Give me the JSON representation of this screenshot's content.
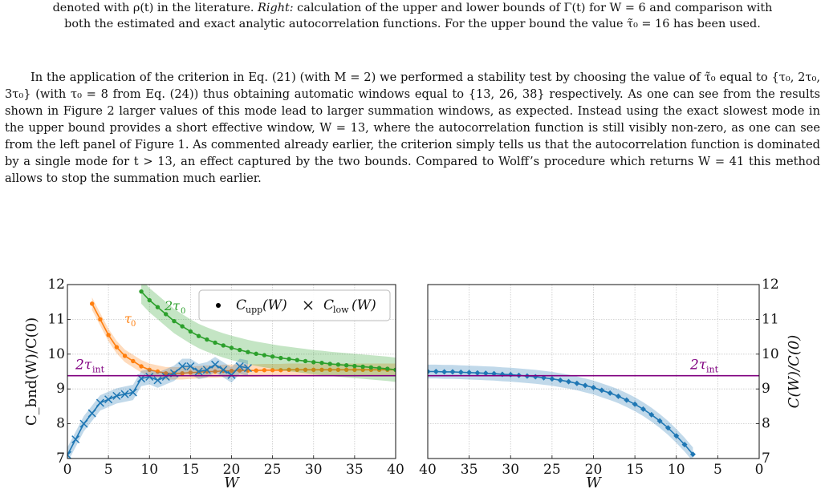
{
  "caption": {
    "line1": "denoted with ρ(t) in the literature. ",
    "right_label": "Right:",
    "line1_rest": " calculation of the upper and lower bounds of Γ(t) for W = 6 and comparison with",
    "line2": "both the estimated and exact analytic autocorrelation functions. For the upper bound the value τ̃₀ = 16 has been used."
  },
  "paragraph": "In the application of the criterion in Eq. (21) (with M = 2) we performed a stability test by choosing the value of τ̃₀ equal to {τ₀, 2τ₀, 3τ₀} (with τ₀ = 8 from Eq. (24)) thus obtaining automatic windows equal to {13, 26, 38} respectively. As one can see from the results shown in Figure 2 larger values of this mode lead to larger summation windows, as expected. Instead using the exact slowest mode in the upper bound provides a short effective window, W = 13, where the autocorrelation function is still visibly non-zero, as one can see from the left panel of Figure 1. As commented already earlier, the criterion simply tells us that the autocorrelation function is dominated by a single mode for t > 13, an effect captured by the two bounds. Compared to Wolff’s procedure which returns W = 41 this method allows to stop the summation much earlier.",
  "colors": {
    "blue": "#1f77b4",
    "orange": "#ff7f0e",
    "green": "#2ca02c",
    "purple": "#800080"
  },
  "chart_data": [
    {
      "type": "line",
      "panel": "left",
      "xlabel": "W",
      "ylabel": "C_bnd(W)/C(0)",
      "xlim": [
        0,
        40
      ],
      "ylim": [
        7,
        12
      ],
      "xticks": [
        "0",
        "5",
        "10",
        "15",
        "20",
        "25",
        "30",
        "35",
        "40"
      ],
      "yticks": [
        "7",
        "8",
        "9",
        "10",
        "11",
        "12"
      ],
      "grid": true,
      "legend": {
        "position": "top-right",
        "entries": [
          "C_upp(W)",
          "C_low(W)"
        ]
      },
      "hline": {
        "label": "2τ_int",
        "y": 9.38
      },
      "series": [
        {
          "name": "τ₀",
          "marker": "dot",
          "color_key": "orange",
          "x": [
            3,
            4,
            5,
            6,
            7,
            8,
            9,
            10,
            11,
            12,
            13,
            14,
            15,
            16,
            17,
            18,
            19,
            20,
            21,
            22,
            23,
            24,
            25,
            26,
            27,
            28,
            29,
            30,
            31,
            32,
            33,
            34,
            35,
            36,
            37,
            38,
            39,
            40
          ],
          "y": [
            11.45,
            11.0,
            10.55,
            10.2,
            9.95,
            9.8,
            9.65,
            9.55,
            9.5,
            9.45,
            9.45,
            9.45,
            9.47,
            9.48,
            9.5,
            9.5,
            9.52,
            9.52,
            9.53,
            9.53,
            9.53,
            9.54,
            9.54,
            9.54,
            9.55,
            9.55,
            9.55,
            9.55,
            9.55,
            9.55,
            9.55,
            9.55,
            9.55,
            9.55,
            9.55,
            9.55,
            9.55,
            9.55
          ],
          "err": 0.18
        },
        {
          "name": "2τ₀",
          "marker": "dot",
          "color_key": "green",
          "x": [
            9,
            10,
            11,
            12,
            13,
            14,
            15,
            16,
            17,
            18,
            19,
            20,
            21,
            22,
            23,
            24,
            25,
            26,
            27,
            28,
            29,
            30,
            31,
            32,
            33,
            34,
            35,
            36,
            37,
            38,
            39,
            40
          ],
          "y": [
            11.8,
            11.55,
            11.35,
            11.15,
            10.95,
            10.8,
            10.65,
            10.52,
            10.42,
            10.33,
            10.25,
            10.18,
            10.12,
            10.06,
            10.01,
            9.97,
            9.93,
            9.89,
            9.86,
            9.83,
            9.8,
            9.77,
            9.75,
            9.72,
            9.7,
            9.68,
            9.66,
            9.64,
            9.62,
            9.6,
            9.58,
            9.55
          ],
          "err": 0.35
        },
        {
          "name": "C_low(W)",
          "marker": "x",
          "color_key": "blue",
          "x": [
            0,
            1,
            2,
            3,
            4,
            5,
            6,
            7,
            8,
            9,
            10,
            11,
            12,
            13,
            14,
            15,
            16,
            17,
            18,
            19,
            20,
            21,
            22
          ],
          "y": [
            7.1,
            7.55,
            8.0,
            8.3,
            8.6,
            8.7,
            8.8,
            8.85,
            8.9,
            9.3,
            9.35,
            9.25,
            9.35,
            9.45,
            9.65,
            9.65,
            9.5,
            9.55,
            9.7,
            9.55,
            9.4,
            9.65,
            9.6
          ],
          "err": 0.22
        }
      ],
      "series_labels": [
        "2τ₀",
        "τ₀"
      ]
    },
    {
      "type": "line",
      "panel": "right",
      "xlabel": "W",
      "ylabel": "C(W)/C(0)",
      "xlim": [
        40,
        0
      ],
      "ylim": [
        7,
        12
      ],
      "xticks": [
        "40",
        "35",
        "30",
        "25",
        "20",
        "15",
        "10",
        "5",
        "0"
      ],
      "yticks": [
        "7",
        "8",
        "9",
        "10",
        "11",
        "12"
      ],
      "grid": true,
      "hline": {
        "label": "2τ_int",
        "y": 9.38
      },
      "series": [
        {
          "name": "C(W)",
          "marker": "diamond",
          "color_key": "blue",
          "x": [
            40,
            39,
            38,
            37,
            36,
            35,
            34,
            33,
            32,
            31,
            30,
            29,
            28,
            27,
            26,
            25,
            24,
            23,
            22,
            21,
            20,
            19,
            18,
            17,
            16,
            15,
            14,
            13,
            12,
            11,
            10,
            9,
            8
          ],
          "y": [
            9.5,
            9.5,
            9.49,
            9.49,
            9.48,
            9.47,
            9.46,
            9.45,
            9.44,
            9.42,
            9.41,
            9.39,
            9.37,
            9.35,
            9.32,
            9.29,
            9.25,
            9.21,
            9.16,
            9.1,
            9.04,
            8.96,
            8.88,
            8.79,
            8.68,
            8.56,
            8.42,
            8.26,
            8.08,
            7.88,
            7.65,
            7.4,
            7.12
          ],
          "err": 0.2
        }
      ]
    }
  ]
}
